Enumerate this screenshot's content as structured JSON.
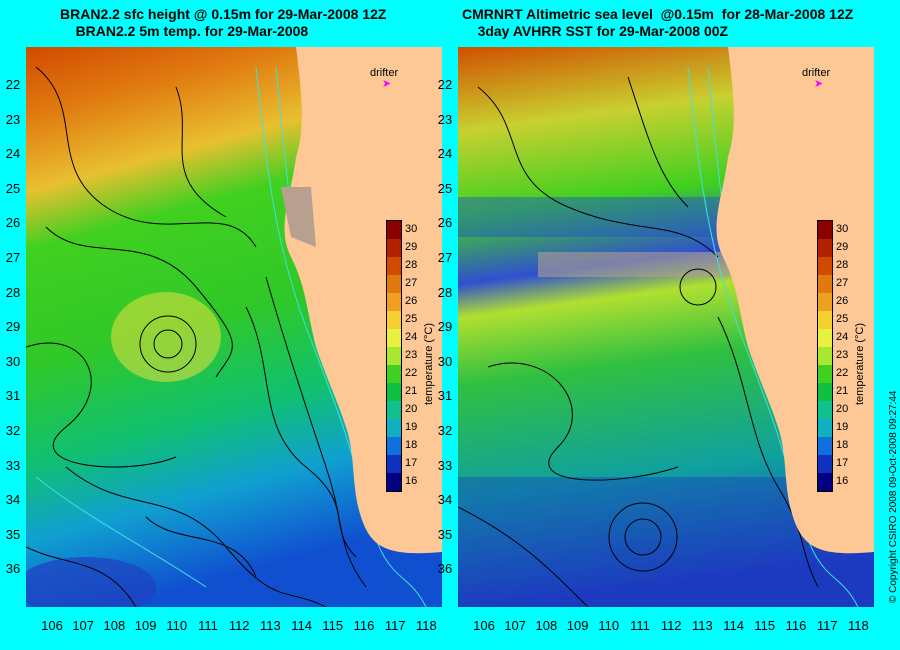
{
  "panels": [
    {
      "title_line1": "BRAN2.2 sfc height @ 0.15m for 29-Mar-2008 12Z",
      "title_line2": "BRAN2.2 5m temp. for 29-Mar-2008",
      "drifter_label": "drifter",
      "colorbar_title": "temperature (°C)"
    },
    {
      "title_line1": "CMRNRT Altimetric sea level  @0.15m  for 28-Mar-2008 12Z",
      "title_line2": "3day AVHRR SST for 29-Mar-2008 00Z",
      "drifter_label": "drifter",
      "colorbar_title": "temperature (°C)"
    }
  ],
  "latitude_labels": [
    "22",
    "23",
    "24",
    "25",
    "26",
    "27",
    "28",
    "29",
    "30",
    "31",
    "32",
    "33",
    "34",
    "35",
    "36"
  ],
  "longitude_labels": [
    "106",
    "107",
    "108",
    "109",
    "110",
    "111",
    "112",
    "113",
    "114",
    "115",
    "116",
    "117",
    "118"
  ],
  "colorbar": {
    "ticks": [
      "30",
      "29",
      "28",
      "27",
      "26",
      "25",
      "24",
      "23",
      "22",
      "21",
      "20",
      "19",
      "18",
      "17",
      "16"
    ],
    "colors": [
      "#8b0000",
      "#b22000",
      "#d24a00",
      "#e07a10",
      "#f0a020",
      "#f4d030",
      "#e8f040",
      "#a8e830",
      "#40d020",
      "#10c040",
      "#10c090",
      "#10b0c0",
      "#1070e0",
      "#1030c0",
      "#000080"
    ]
  },
  "copyright": "© Copyright CSIRO 2008   09-Oct-2008 09:27:44",
  "colors": {
    "background": "#00ffff",
    "land": "#fec896",
    "contour": "#000000",
    "bathymetry": "#40e0e0",
    "drifter": "#ff00ff"
  }
}
